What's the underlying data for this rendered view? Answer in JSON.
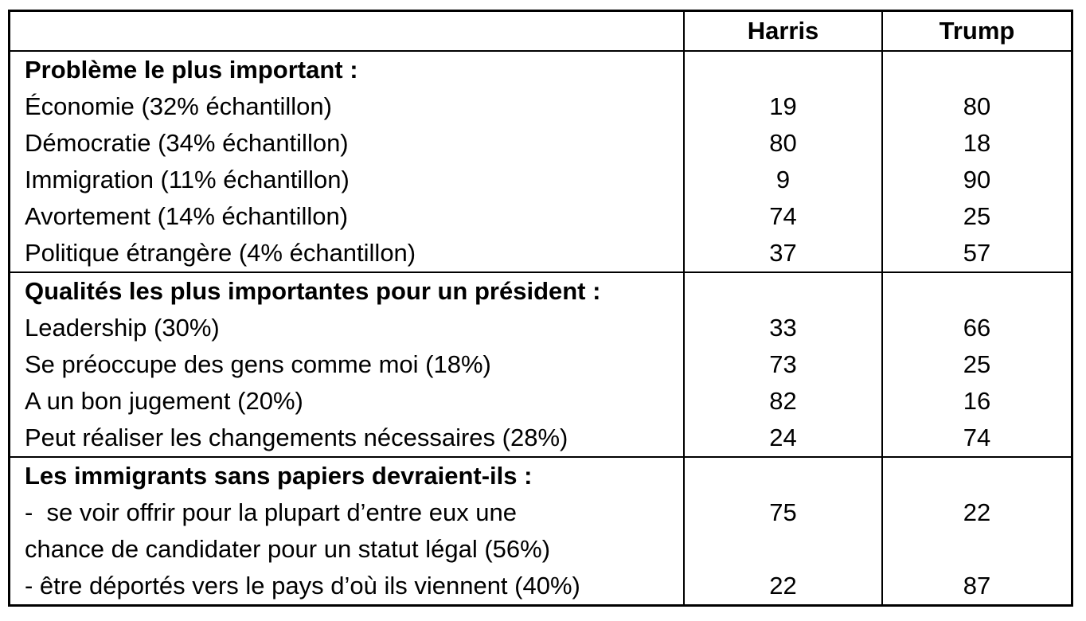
{
  "table": {
    "header": {
      "label_col": "",
      "harris": "Harris",
      "trump": "Trump"
    },
    "sections": [
      {
        "title": "Problème le plus important :",
        "rows": [
          {
            "label_lines": [
              "Économie (32% échantillon)"
            ],
            "harris": "19",
            "trump": "80"
          },
          {
            "label_lines": [
              "Démocratie (34% échantillon)"
            ],
            "harris": "80",
            "trump": "18"
          },
          {
            "label_lines": [
              "Immigration (11% échantillon)"
            ],
            "harris": "9",
            "trump": "90"
          },
          {
            "label_lines": [
              "Avortement (14% échantillon)"
            ],
            "harris": "74",
            "trump": "25"
          },
          {
            "label_lines": [
              "Politique étrangère (4% échantillon)"
            ],
            "harris": "37",
            "trump": "57"
          }
        ]
      },
      {
        "title": "Qualités les plus importantes pour un président :",
        "rows": [
          {
            "label_lines": [
              "Leadership (30%)"
            ],
            "harris": "33",
            "trump": "66"
          },
          {
            "label_lines": [
              "Se préoccupe des gens comme moi (18%)"
            ],
            "harris": "73",
            "trump": "25"
          },
          {
            "label_lines": [
              "A un bon jugement (20%)"
            ],
            "harris": "82",
            "trump": "16"
          },
          {
            "label_lines": [
              "Peut réaliser les changements nécessaires (28%)"
            ],
            "harris": "24",
            "trump": "74"
          }
        ]
      },
      {
        "title": "Les immigrants sans papiers devraient-ils :",
        "rows": [
          {
            "label_lines": [
              "-  se voir offrir pour la plupart d’entre eux une",
              "chance de candidater pour un statut légal (56%)"
            ],
            "harris": "75",
            "trump": "22"
          },
          {
            "label_lines": [
              "- être déportés vers le pays d’où ils viennent (40%)"
            ],
            "harris": "22",
            "trump": "87"
          }
        ]
      }
    ]
  },
  "colors": {
    "border": "#000000",
    "text": "#000000",
    "background": "#ffffff"
  }
}
